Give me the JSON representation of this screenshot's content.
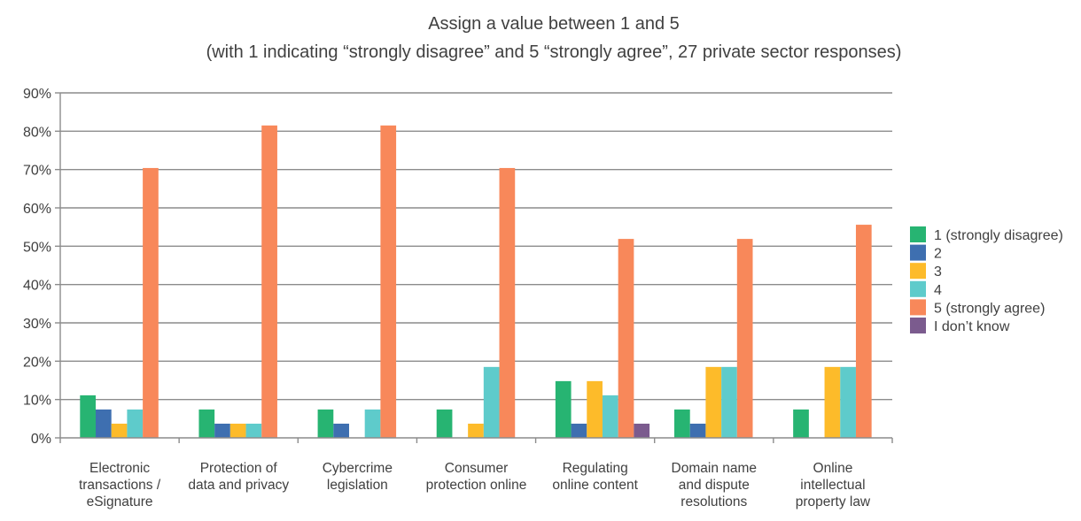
{
  "chart_data": {
    "type": "bar",
    "title": "Assign a value between 1 and 5",
    "subtitle": "(with 1 indicating “strongly disagree” and 5 “strongly agree”, 27 private sector responses)",
    "xlabel": "",
    "ylabel": "",
    "ylim": [
      0,
      90
    ],
    "ytick_step": 10,
    "ytick_labels": [
      "0%",
      "10%",
      "20%",
      "30%",
      "40%",
      "50%",
      "60%",
      "70%",
      "80%",
      "90%"
    ],
    "grid": true,
    "legend_position": "right",
    "categories": [
      [
        "Electronic",
        "transactions /",
        "eSignature"
      ],
      [
        "Protection of",
        "data and privacy"
      ],
      [
        "Cybercrime",
        "legislation"
      ],
      [
        "Consumer",
        "protection online"
      ],
      [
        "Regulating",
        "online content"
      ],
      [
        "Domain name",
        "and dispute",
        "resolutions"
      ],
      [
        "Online",
        "intellectual",
        "property law"
      ]
    ],
    "series": [
      {
        "name": "1 (strongly disagree)",
        "color": "#27b472",
        "values": [
          11.1,
          7.4,
          7.4,
          7.4,
          14.8,
          7.4,
          7.4
        ]
      },
      {
        "name": "2",
        "color": "#3e6fb0",
        "values": [
          7.4,
          3.7,
          3.7,
          0,
          3.7,
          3.7,
          0
        ]
      },
      {
        "name": "3",
        "color": "#fdbb2a",
        "values": [
          3.7,
          3.7,
          0,
          3.7,
          14.8,
          18.5,
          18.5
        ]
      },
      {
        "name": "4",
        "color": "#5ecbcb",
        "values": [
          7.4,
          3.7,
          7.4,
          18.5,
          11.1,
          18.5,
          18.5
        ]
      },
      {
        "name": "5 (strongly agree)",
        "color": "#f8885a",
        "values": [
          70.4,
          81.5,
          81.5,
          70.4,
          51.9,
          51.9,
          55.6
        ]
      },
      {
        "name": "I don’t know",
        "color": "#7b5b8e",
        "values": [
          0,
          0,
          0,
          0,
          3.7,
          0,
          0
        ]
      }
    ]
  }
}
